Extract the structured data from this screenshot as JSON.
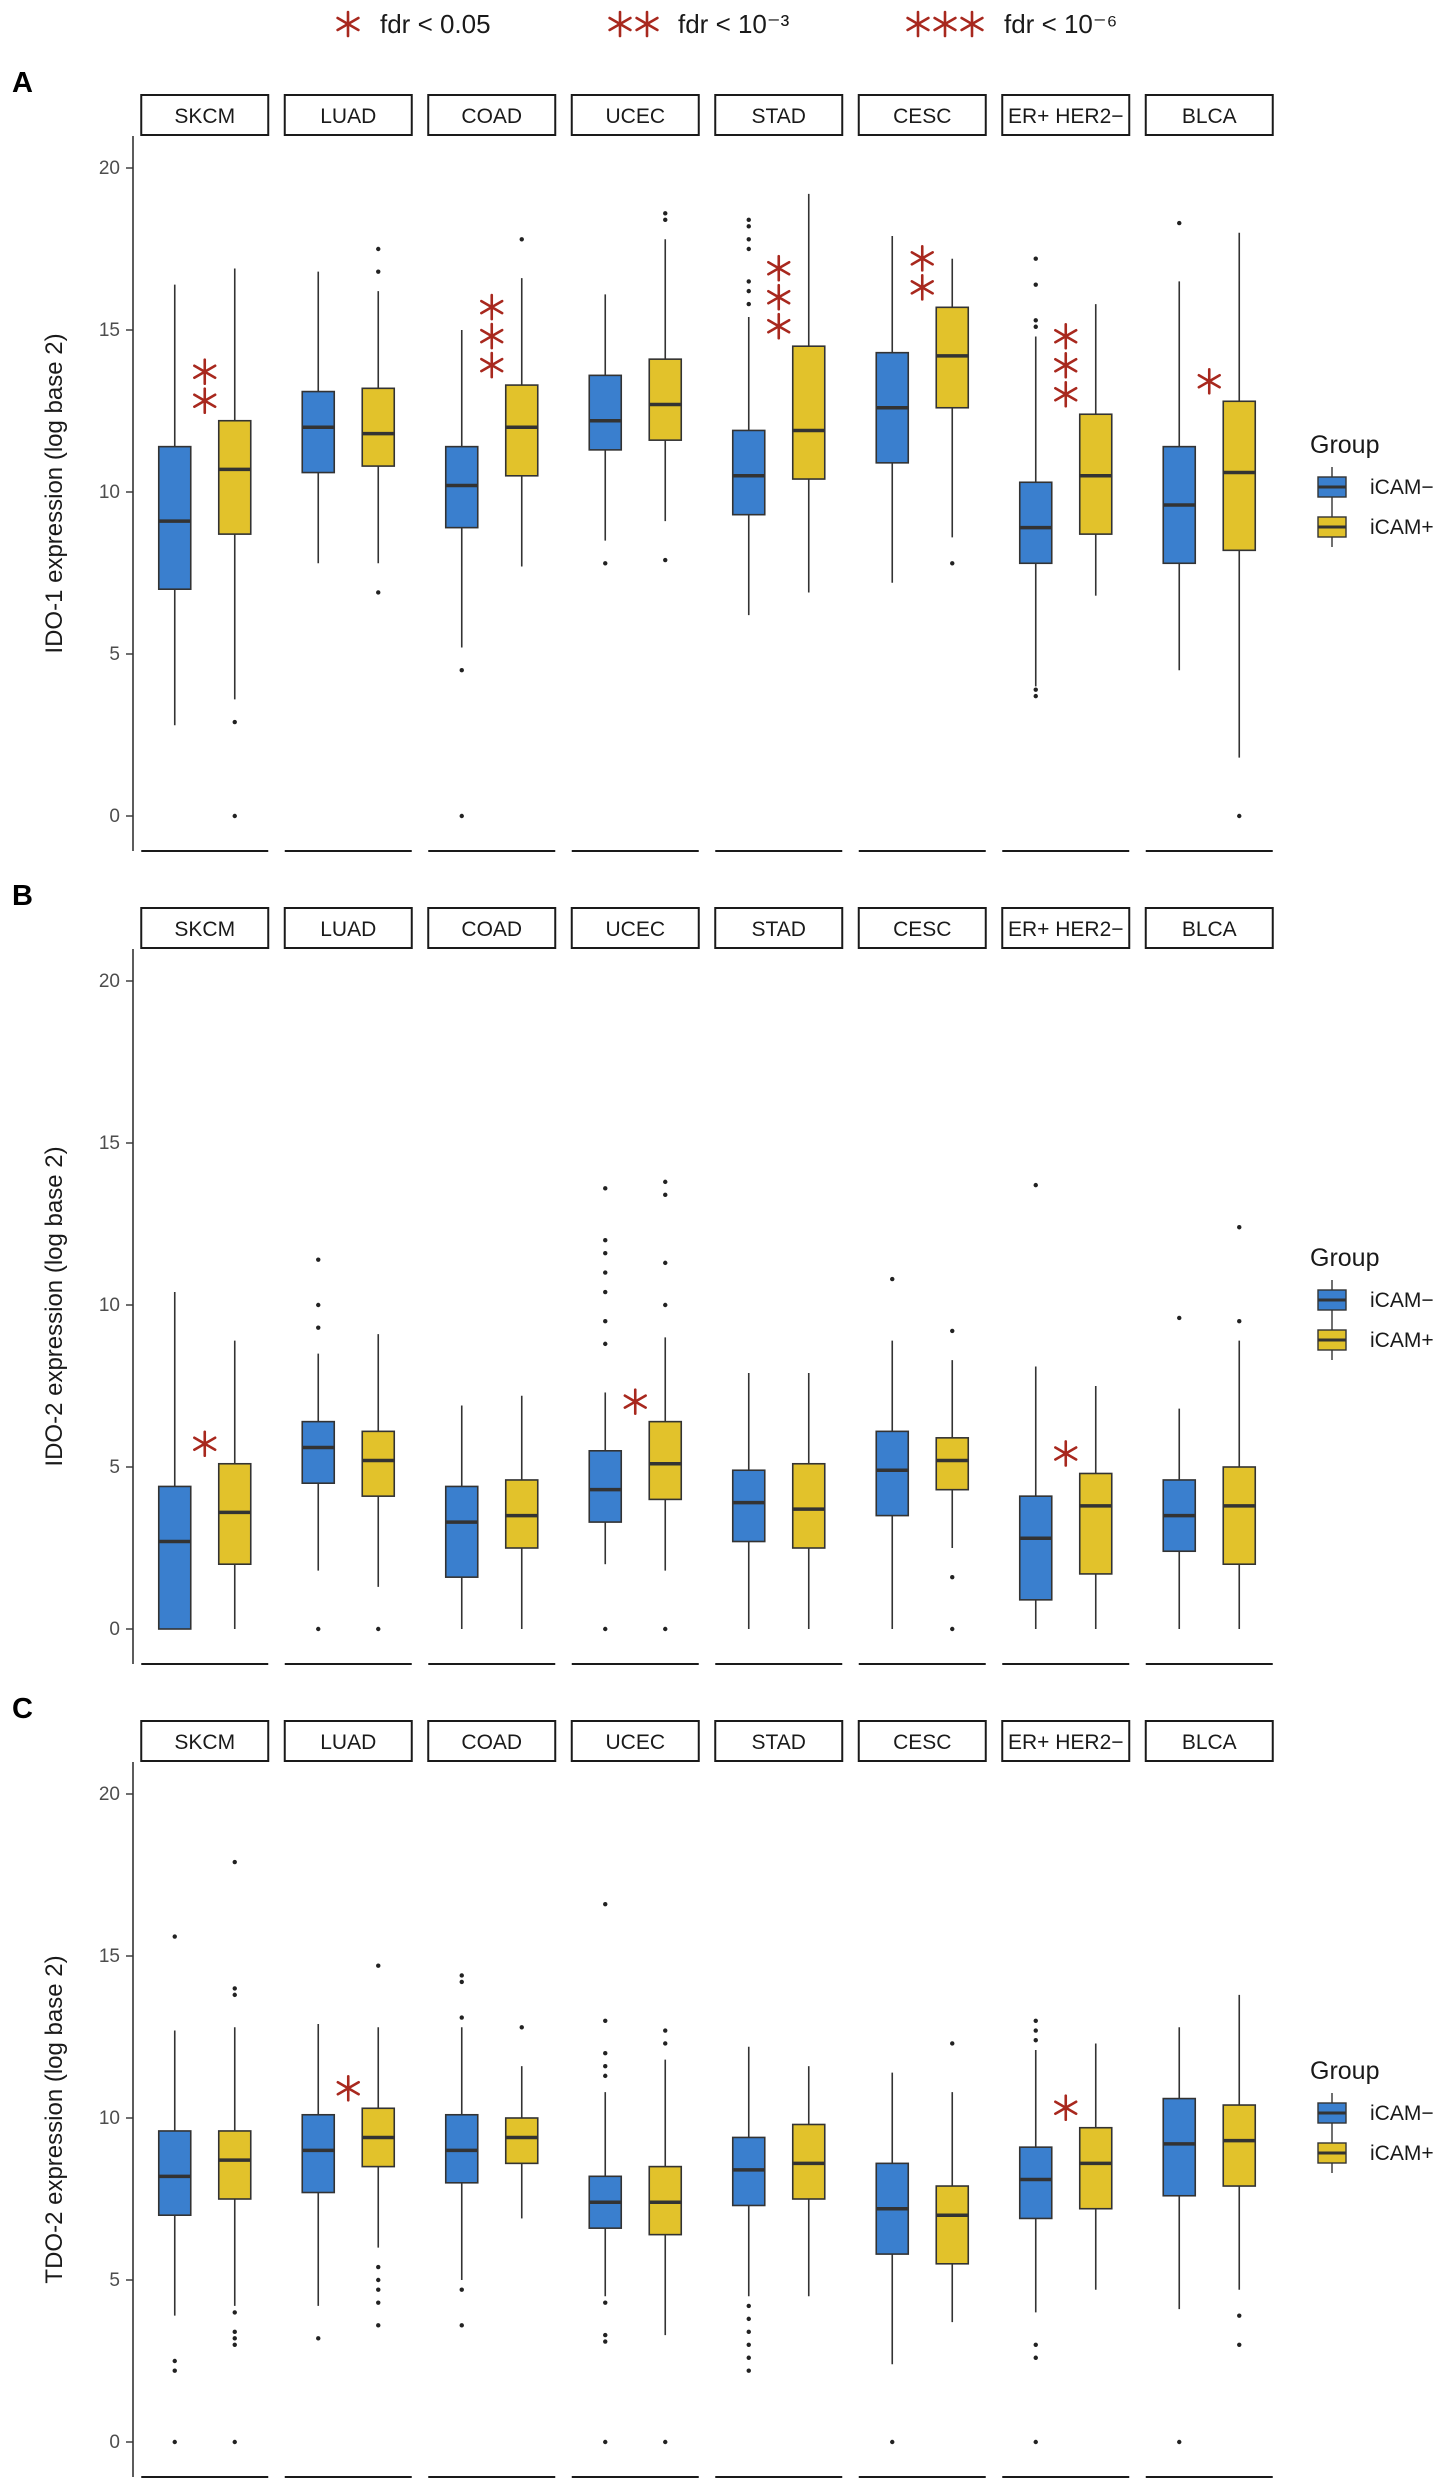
{
  "significance_legend": [
    {
      "stars": "*",
      "label": "fdr < 0.05"
    },
    {
      "stars": "**",
      "label": "fdr < 10⁻³"
    },
    {
      "stars": "***",
      "label": "fdr < 10⁻⁶"
    }
  ],
  "colors": {
    "iCAM-": "#3a7fce",
    "iCAM+": "#e2c22b",
    "star": "#a8281e",
    "outline": "#333333"
  },
  "chart_data": [
    {
      "type": "box",
      "panel": "A",
      "ylabel": "IDO-1 expression (log base 2)",
      "ylim": [
        0,
        20
      ],
      "yticks": [
        0,
        5,
        10,
        15,
        20
      ],
      "facets": [
        "SKCM",
        "LUAD",
        "COAD",
        "UCEC",
        "STAD",
        "CESC",
        "ER+ HER2−",
        "BLCA"
      ],
      "legend": {
        "title": "Group",
        "entries": [
          "iCAM−",
          "iCAM+"
        ]
      },
      "series": [
        {
          "name": "iCAM−",
          "boxes": [
            {
              "min": 2.8,
              "q1": 7.0,
              "median": 9.1,
              "q3": 11.4,
              "max": 16.4,
              "outliers": []
            },
            {
              "min": 7.8,
              "q1": 10.6,
              "median": 12.0,
              "q3": 13.1,
              "max": 16.8,
              "outliers": []
            },
            {
              "min": 5.2,
              "q1": 8.9,
              "median": 10.2,
              "q3": 11.4,
              "max": 15.0,
              "outliers": [
                4.5,
                0
              ]
            },
            {
              "min": 8.5,
              "q1": 11.3,
              "median": 12.2,
              "q3": 13.6,
              "max": 16.1,
              "outliers": [
                7.8
              ]
            },
            {
              "min": 6.2,
              "q1": 9.3,
              "median": 10.5,
              "q3": 11.9,
              "max": 15.4,
              "outliers": [
                15.8,
                16.2,
                16.5,
                17.5,
                17.8,
                18.2,
                18.4
              ]
            },
            {
              "min": 7.2,
              "q1": 10.9,
              "median": 12.6,
              "q3": 14.3,
              "max": 17.9,
              "outliers": []
            },
            {
              "min": 4.0,
              "q1": 7.8,
              "median": 8.9,
              "q3": 10.3,
              "max": 14.8,
              "outliers": [
                3.7,
                3.9,
                15.1,
                15.3,
                16.4,
                17.2
              ]
            },
            {
              "min": 4.5,
              "q1": 7.8,
              "median": 9.6,
              "q3": 11.4,
              "max": 16.5,
              "outliers": [
                18.3
              ]
            }
          ]
        },
        {
          "name": "iCAM+",
          "boxes": [
            {
              "min": 3.6,
              "q1": 8.7,
              "median": 10.7,
              "q3": 12.2,
              "max": 16.9,
              "outliers": [
                2.9,
                0
              ]
            },
            {
              "min": 7.8,
              "q1": 10.8,
              "median": 11.8,
              "q3": 13.2,
              "max": 16.2,
              "outliers": [
                6.9,
                16.8,
                17.5
              ]
            },
            {
              "min": 7.7,
              "q1": 10.5,
              "median": 12.0,
              "q3": 13.3,
              "max": 16.6,
              "outliers": [
                17.8
              ]
            },
            {
              "min": 9.1,
              "q1": 11.6,
              "median": 12.7,
              "q3": 14.1,
              "max": 17.8,
              "outliers": [
                7.9,
                18.4,
                18.6
              ]
            },
            {
              "min": 6.9,
              "q1": 10.4,
              "median": 11.9,
              "q3": 14.5,
              "max": 19.2,
              "outliers": []
            },
            {
              "min": 8.6,
              "q1": 12.6,
              "median": 14.2,
              "q3": 15.7,
              "max": 17.2,
              "outliers": [
                7.8
              ]
            },
            {
              "min": 6.8,
              "q1": 8.7,
              "median": 10.5,
              "q3": 12.4,
              "max": 15.8,
              "outliers": []
            },
            {
              "min": 1.8,
              "q1": 8.2,
              "median": 10.6,
              "q3": 12.8,
              "max": 18.0,
              "outliers": [
                0
              ]
            }
          ]
        }
      ],
      "significance": [
        {
          "facet": "SKCM",
          "stars": 2
        },
        {
          "facet": "COAD",
          "stars": 3
        },
        {
          "facet": "STAD",
          "stars": 3
        },
        {
          "facet": "CESC",
          "stars": 2
        },
        {
          "facet": "ER+ HER2−",
          "stars": 3
        },
        {
          "facet": "BLCA",
          "stars": 1
        }
      ]
    },
    {
      "type": "box",
      "panel": "B",
      "ylabel": "IDO-2 expression (log base 2)",
      "ylim": [
        0,
        20
      ],
      "yticks": [
        0,
        5,
        10,
        15,
        20
      ],
      "facets": [
        "SKCM",
        "LUAD",
        "COAD",
        "UCEC",
        "STAD",
        "CESC",
        "ER+ HER2−",
        "BLCA"
      ],
      "legend": {
        "title": "Group",
        "entries": [
          "iCAM−",
          "iCAM+"
        ]
      },
      "series": [
        {
          "name": "iCAM−",
          "boxes": [
            {
              "min": 0,
              "q1": 0,
              "median": 2.7,
              "q3": 4.4,
              "max": 10.4,
              "outliers": []
            },
            {
              "min": 1.8,
              "q1": 4.5,
              "median": 5.6,
              "q3": 6.4,
              "max": 8.5,
              "outliers": [
                0,
                9.3,
                10.0,
                11.4
              ]
            },
            {
              "min": 0,
              "q1": 1.6,
              "median": 3.3,
              "q3": 4.4,
              "max": 6.9,
              "outliers": []
            },
            {
              "min": 2.0,
              "q1": 3.3,
              "median": 4.3,
              "q3": 5.5,
              "max": 7.3,
              "outliers": [
                0,
                8.8,
                9.5,
                10.4,
                11.0,
                11.6,
                12.0,
                13.6
              ]
            },
            {
              "min": 0,
              "q1": 2.7,
              "median": 3.9,
              "q3": 4.9,
              "max": 7.9,
              "outliers": []
            },
            {
              "min": 0,
              "q1": 3.5,
              "median": 4.9,
              "q3": 6.1,
              "max": 8.9,
              "outliers": [
                10.8
              ]
            },
            {
              "min": 0,
              "q1": 0.9,
              "median": 2.8,
              "q3": 4.1,
              "max": 8.1,
              "outliers": [
                13.7
              ]
            },
            {
              "min": 0,
              "q1": 2.4,
              "median": 3.5,
              "q3": 4.6,
              "max": 6.8,
              "outliers": [
                9.6
              ]
            }
          ]
        },
        {
          "name": "iCAM+",
          "boxes": [
            {
              "min": 0,
              "q1": 2.0,
              "median": 3.6,
              "q3": 5.1,
              "max": 8.9,
              "outliers": []
            },
            {
              "min": 1.3,
              "q1": 4.1,
              "median": 5.2,
              "q3": 6.1,
              "max": 9.1,
              "outliers": [
                0
              ]
            },
            {
              "min": 0,
              "q1": 2.5,
              "median": 3.5,
              "q3": 4.6,
              "max": 7.2,
              "outliers": []
            },
            {
              "min": 1.8,
              "q1": 4.0,
              "median": 5.1,
              "q3": 6.4,
              "max": 9.0,
              "outliers": [
                0,
                10.0,
                11.3,
                13.4,
                13.8
              ]
            },
            {
              "min": 0,
              "q1": 2.5,
              "median": 3.7,
              "q3": 5.1,
              "max": 7.9,
              "outliers": []
            },
            {
              "min": 2.5,
              "q1": 4.3,
              "median": 5.2,
              "q3": 5.9,
              "max": 8.3,
              "outliers": [
                0,
                1.6,
                9.2
              ]
            },
            {
              "min": 0,
              "q1": 1.7,
              "median": 3.8,
              "q3": 4.8,
              "max": 7.5,
              "outliers": []
            },
            {
              "min": 0,
              "q1": 2.0,
              "median": 3.8,
              "q3": 5.0,
              "max": 8.9,
              "outliers": [
                9.5,
                12.4
              ]
            }
          ]
        }
      ],
      "significance": [
        {
          "facet": "SKCM",
          "stars": 1
        },
        {
          "facet": "UCEC",
          "stars": 1
        },
        {
          "facet": "ER+ HER2−",
          "stars": 1
        }
      ]
    },
    {
      "type": "box",
      "panel": "C",
      "ylabel": "TDO-2 expression (log base 2)",
      "ylim": [
        0,
        20
      ],
      "yticks": [
        0,
        5,
        10,
        15,
        20
      ],
      "facets": [
        "SKCM",
        "LUAD",
        "COAD",
        "UCEC",
        "STAD",
        "CESC",
        "ER+ HER2−",
        "BLCA"
      ],
      "legend": {
        "title": "Group",
        "entries": [
          "iCAM−",
          "iCAM+"
        ]
      },
      "series": [
        {
          "name": "iCAM−",
          "boxes": [
            {
              "min": 3.9,
              "q1": 7.0,
              "median": 8.2,
              "q3": 9.6,
              "max": 12.7,
              "outliers": [
                0,
                2.2,
                2.5,
                15.6
              ]
            },
            {
              "min": 4.2,
              "q1": 7.7,
              "median": 9.0,
              "q3": 10.1,
              "max": 12.9,
              "outliers": [
                3.2
              ]
            },
            {
              "min": 5.0,
              "q1": 8.0,
              "median": 9.0,
              "q3": 10.1,
              "max": 12.8,
              "outliers": [
                3.6,
                4.7,
                13.1,
                14.2,
                14.4
              ]
            },
            {
              "min": 4.5,
              "q1": 6.6,
              "median": 7.4,
              "q3": 8.2,
              "max": 10.8,
              "outliers": [
                0,
                3.1,
                3.3,
                4.3,
                11.3,
                11.6,
                12.0,
                13.0,
                16.6
              ]
            },
            {
              "min": 4.5,
              "q1": 7.3,
              "median": 8.4,
              "q3": 9.4,
              "max": 12.2,
              "outliers": [
                2.2,
                2.6,
                3.0,
                3.4,
                3.8,
                4.2
              ]
            },
            {
              "min": 2.4,
              "q1": 5.8,
              "median": 7.2,
              "q3": 8.6,
              "max": 11.4,
              "outliers": [
                0
              ]
            },
            {
              "min": 4.0,
              "q1": 6.9,
              "median": 8.1,
              "q3": 9.1,
              "max": 12.1,
              "outliers": [
                0,
                2.6,
                3.0,
                12.4,
                12.7,
                13.0
              ]
            },
            {
              "min": 4.1,
              "q1": 7.6,
              "median": 9.2,
              "q3": 10.6,
              "max": 12.8,
              "outliers": [
                0
              ]
            }
          ]
        },
        {
          "name": "iCAM+",
          "boxes": [
            {
              "min": 4.2,
              "q1": 7.5,
              "median": 8.7,
              "q3": 9.6,
              "max": 12.8,
              "outliers": [
                0,
                3.0,
                3.2,
                3.4,
                4.0,
                13.8,
                14.0,
                17.9
              ]
            },
            {
              "min": 6.0,
              "q1": 8.5,
              "median": 9.4,
              "q3": 10.3,
              "max": 12.8,
              "outliers": [
                3.6,
                4.3,
                4.7,
                5.0,
                5.4,
                14.7
              ]
            },
            {
              "min": 6.9,
              "q1": 8.6,
              "median": 9.4,
              "q3": 10.0,
              "max": 11.6,
              "outliers": [
                12.8
              ]
            },
            {
              "min": 3.3,
              "q1": 6.4,
              "median": 7.4,
              "q3": 8.5,
              "max": 11.8,
              "outliers": [
                0,
                12.3,
                12.7
              ]
            },
            {
              "min": 4.5,
              "q1": 7.5,
              "median": 8.6,
              "q3": 9.8,
              "max": 11.6,
              "outliers": []
            },
            {
              "min": 3.7,
              "q1": 5.5,
              "median": 7.0,
              "q3": 7.9,
              "max": 10.8,
              "outliers": [
                12.3
              ]
            },
            {
              "min": 4.7,
              "q1": 7.2,
              "median": 8.6,
              "q3": 9.7,
              "max": 12.3,
              "outliers": []
            },
            {
              "min": 4.7,
              "q1": 7.9,
              "median": 9.3,
              "q3": 10.4,
              "max": 13.8,
              "outliers": [
                3.0,
                3.9
              ]
            }
          ]
        }
      ],
      "significance": [
        {
          "facet": "LUAD",
          "stars": 1
        },
        {
          "facet": "ER+ HER2−",
          "stars": 1
        }
      ]
    }
  ]
}
